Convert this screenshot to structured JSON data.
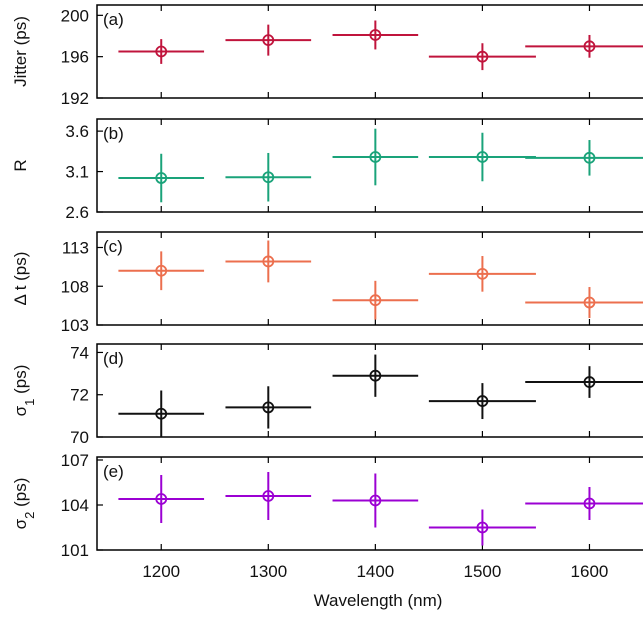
{
  "chart_data": {
    "type": "scatter",
    "xlabel": "Wavelength (nm)",
    "xlim": [
      1140,
      1650
    ],
    "xticks": [
      1200,
      1300,
      1400,
      1500,
      1600
    ],
    "xtick_labels": [
      "1200",
      "1300",
      "1400",
      "1500",
      "1600"
    ],
    "grid": false,
    "panels": [
      {
        "tag": "(a)",
        "ylabel": "Jitter (ps)",
        "color": "#c0143c",
        "ylim": [
          192,
          201
        ],
        "yticks": [
          192,
          196,
          200
        ],
        "ytick_labels": [
          "192",
          "196",
          "200"
        ],
        "points": [
          {
            "x": 1200,
            "y": 196.5,
            "xerr": 40,
            "yerr": 1.2
          },
          {
            "x": 1300,
            "y": 197.6,
            "xerr": 40,
            "yerr": 1.5
          },
          {
            "x": 1400,
            "y": 198.1,
            "xerr": 40,
            "yerr": 1.4
          },
          {
            "x": 1500,
            "y": 196.0,
            "xerr": 50,
            "yerr": 1.3
          },
          {
            "x": 1600,
            "y": 197.0,
            "xerr": 60,
            "yerr": 1.1
          }
        ]
      },
      {
        "tag": "(b)",
        "ylabel": "R",
        "color": "#1aa37a",
        "ylim": [
          2.6,
          3.75
        ],
        "yticks": [
          2.6,
          3.1,
          3.6
        ],
        "ytick_labels": [
          "2.6",
          "3.1",
          "3.6"
        ],
        "points": [
          {
            "x": 1200,
            "y": 3.02,
            "xerr": 40,
            "yerr": 0.3
          },
          {
            "x": 1300,
            "y": 3.03,
            "xerr": 40,
            "yerr": 0.3
          },
          {
            "x": 1400,
            "y": 3.28,
            "xerr": 40,
            "yerr": 0.35
          },
          {
            "x": 1500,
            "y": 3.28,
            "xerr": 50,
            "yerr": 0.3
          },
          {
            "x": 1600,
            "y": 3.27,
            "xerr": 60,
            "yerr": 0.22
          }
        ]
      },
      {
        "tag": "(c)",
        "ylabel": "Δ t (ps)",
        "color": "#ec6f4e",
        "ylim": [
          103,
          115
        ],
        "yticks": [
          103,
          108,
          113
        ],
        "ytick_labels": [
          "103",
          "108",
          "113"
        ],
        "points": [
          {
            "x": 1200,
            "y": 110.0,
            "xerr": 40,
            "yerr": 2.5
          },
          {
            "x": 1300,
            "y": 111.2,
            "xerr": 40,
            "yerr": 2.7
          },
          {
            "x": 1400,
            "y": 106.2,
            "xerr": 40,
            "yerr": 2.5
          },
          {
            "x": 1500,
            "y": 109.6,
            "xerr": 50,
            "yerr": 2.3
          },
          {
            "x": 1600,
            "y": 105.9,
            "xerr": 60,
            "yerr": 2.0
          }
        ]
      },
      {
        "tag": "(d)",
        "ylabel": "σ1 (ps)",
        "ylabel_main": "σ",
        "ylabel_sub": "1",
        "ylabel_unit": " (ps)",
        "color": "#111111",
        "ylim": [
          70,
          74.4
        ],
        "yticks": [
          70,
          72,
          74
        ],
        "ytick_labels": [
          "70",
          "72",
          "74"
        ],
        "points": [
          {
            "x": 1200,
            "y": 71.1,
            "xerr": 40,
            "yerr": 1.1
          },
          {
            "x": 1300,
            "y": 71.4,
            "xerr": 40,
            "yerr": 1.0
          },
          {
            "x": 1400,
            "y": 72.9,
            "xerr": 40,
            "yerr": 1.0
          },
          {
            "x": 1500,
            "y": 71.7,
            "xerr": 50,
            "yerr": 0.85
          },
          {
            "x": 1600,
            "y": 72.6,
            "xerr": 60,
            "yerr": 0.75
          }
        ]
      },
      {
        "tag": "(e)",
        "ylabel": "σ2 (ps)",
        "ylabel_main": "σ",
        "ylabel_sub": "2",
        "ylabel_unit": " (ps)",
        "color": "#9b00d3",
        "ylim": [
          101,
          107.2
        ],
        "yticks": [
          101,
          104,
          107
        ],
        "ytick_labels": [
          "101",
          "104",
          "107"
        ],
        "points": [
          {
            "x": 1200,
            "y": 104.4,
            "xerr": 40,
            "yerr": 1.6
          },
          {
            "x": 1300,
            "y": 104.6,
            "xerr": 40,
            "yerr": 1.6
          },
          {
            "x": 1400,
            "y": 104.3,
            "xerr": 40,
            "yerr": 1.8
          },
          {
            "x": 1500,
            "y": 102.5,
            "xerr": 50,
            "yerr": 1.2
          },
          {
            "x": 1600,
            "y": 104.1,
            "xerr": 60,
            "yerr": 1.1
          }
        ]
      }
    ]
  }
}
